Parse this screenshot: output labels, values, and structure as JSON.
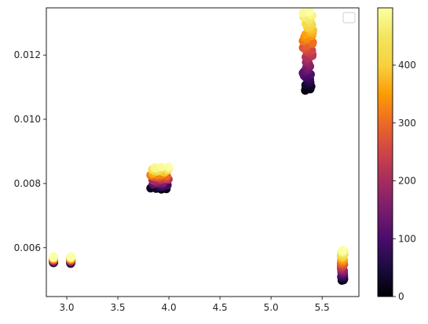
{
  "chart_data": {
    "type": "scatter",
    "title": "",
    "xlabel": "",
    "ylabel": "",
    "xlim": [
      2.8,
      5.86
    ],
    "ylim": [
      0.00448,
      0.01347
    ],
    "xticks": [
      3.0,
      3.5,
      4.0,
      4.5,
      5.0,
      5.5
    ],
    "xtick_labels": [
      "3.0",
      "3.5",
      "4.0",
      "4.5",
      "5.0",
      "5.5"
    ],
    "yticks": [
      0.006,
      0.008,
      0.01,
      0.012
    ],
    "ytick_labels": [
      "0.006",
      "0.008",
      "0.010",
      "0.012"
    ],
    "grid": false,
    "legend": {
      "placement": "upper right",
      "entries": []
    },
    "colorbar": {
      "colormap": "inferno",
      "range": [
        0,
        499
      ],
      "ticks": [
        0,
        100,
        200,
        300,
        400
      ],
      "tick_labels": [
        "0",
        "100",
        "200",
        "300",
        "400"
      ]
    },
    "clusters": [
      {
        "x_center": 2.87,
        "x_spread": 0.004,
        "y_low": 0.00553,
        "y_high": 0.00572,
        "c_low": 0,
        "c_high": 499
      },
      {
        "x_center": 3.04,
        "x_spread": 0.004,
        "y_low": 0.00551,
        "y_high": 0.00572,
        "c_low": 0,
        "c_high": 499
      },
      {
        "x_center": 3.91,
        "x_spread": 0.09,
        "y_low": 0.00782,
        "y_high": 0.00852,
        "c_low": 0,
        "c_high": 499
      },
      {
        "x_center": 5.36,
        "x_spread": 0.05,
        "y_low": 0.0109,
        "y_high": 0.01335,
        "c_low": 0,
        "c_high": 499
      },
      {
        "x_center": 5.7,
        "x_spread": 0.015,
        "y_low": 0.00498,
        "y_high": 0.00592,
        "c_low": 0,
        "c_high": 499
      }
    ]
  }
}
